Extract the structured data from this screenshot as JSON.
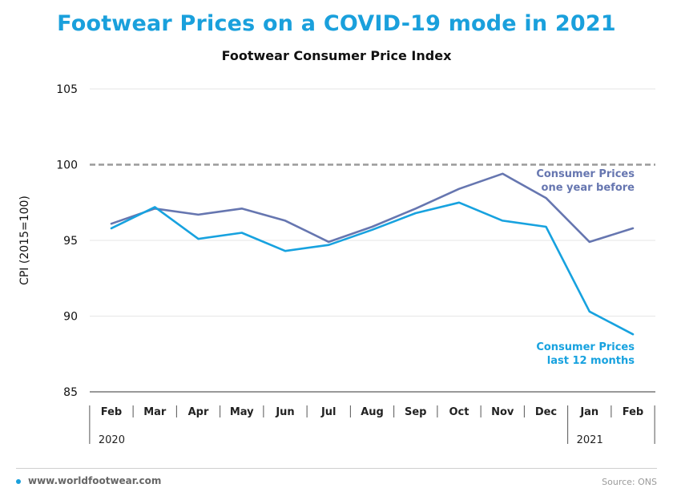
{
  "header": {
    "title": "Footwear Prices on a COVID-19 mode in 2021",
    "subtitle": "Footwear Consumer Price Index"
  },
  "footer": {
    "site": "www.worldfootwear.com",
    "source": "Source: ONS"
  },
  "colors": {
    "title": "#1aa0dc",
    "series_last_12_months": "#17a2df",
    "series_one_year_before": "#6676b0",
    "reference_line": "#9a9a9a"
  },
  "chart_data": {
    "type": "line",
    "title": "Footwear Consumer Price Index",
    "ylabel": "CPI (2015=100)",
    "xlabel": "",
    "ylim": [
      85,
      105
    ],
    "yticks": [
      85,
      90,
      95,
      100,
      105
    ],
    "categories": [
      "Feb",
      "Mar",
      "Apr",
      "May",
      "Jun",
      "Jul",
      "Aug",
      "Sep",
      "Oct",
      "Nov",
      "Dec",
      "Jan",
      "Feb"
    ],
    "year_groups": [
      {
        "label": "2020",
        "start": 0,
        "end": 10
      },
      {
        "label": "2021",
        "start": 11,
        "end": 12
      }
    ],
    "reference_line": 100,
    "grid": true,
    "series": [
      {
        "name": "Consumer Prices one year before",
        "label_lines": [
          "Consumer Prices",
          "one year before"
        ],
        "color": "#6676b0",
        "values": [
          96.1,
          97.1,
          96.7,
          97.1,
          96.3,
          94.9,
          95.9,
          97.1,
          98.4,
          99.4,
          97.8,
          94.9,
          95.8
        ]
      },
      {
        "name": "Consumer Prices last 12 months",
        "label_lines": [
          "Consumer Prices",
          "last 12 months"
        ],
        "color": "#17a2df",
        "values": [
          95.8,
          97.2,
          95.1,
          95.5,
          94.3,
          94.7,
          95.7,
          96.8,
          97.5,
          96.3,
          95.9,
          90.3,
          88.8
        ]
      }
    ]
  }
}
